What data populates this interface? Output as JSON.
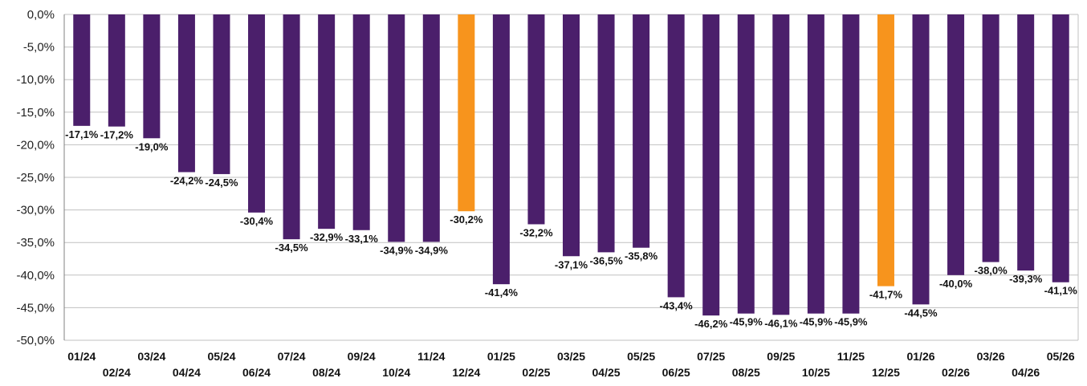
{
  "chart_data": {
    "type": "bar",
    "title": "",
    "xlabel": "",
    "ylabel": "",
    "ylim": [
      -50,
      0
    ],
    "y_ticks": [
      0,
      -5,
      -10,
      -15,
      -20,
      -25,
      -30,
      -35,
      -40,
      -45,
      -50
    ],
    "y_tick_labels": [
      "0,0%",
      "-5,0%",
      "-10,0%",
      "-15,0%",
      "-20,0%",
      "-25,0%",
      "-30,0%",
      "-35,0%",
      "-40,0%",
      "-45,0%",
      "-50,0%"
    ],
    "grid": "horizontal",
    "legend": "none",
    "categories": [
      "01/24",
      "02/24",
      "03/24",
      "04/24",
      "05/24",
      "06/24",
      "07/24",
      "08/24",
      "09/24",
      "10/24",
      "11/24",
      "12/24",
      "01/25",
      "02/25",
      "03/25",
      "04/25",
      "05/25",
      "06/25",
      "07/25",
      "08/25",
      "09/25",
      "10/25",
      "11/25",
      "12/25",
      "01/26",
      "02/26",
      "03/26",
      "04/26",
      "05/26"
    ],
    "values": [
      -17.1,
      -17.2,
      -19.0,
      -24.2,
      -24.5,
      -30.4,
      -34.5,
      -32.9,
      -33.1,
      -34.9,
      -34.9,
      -30.2,
      -41.4,
      -32.2,
      -37.1,
      -36.5,
      -35.8,
      -43.4,
      -46.2,
      -45.9,
      -46.1,
      -45.9,
      -45.9,
      -41.7,
      -44.5,
      -40.0,
      -38.0,
      -39.3,
      -41.1
    ],
    "value_labels": [
      "-17,1%",
      "-17,2%",
      "-19,0%",
      "-24,2%",
      "-24,5%",
      "-30,4%",
      "-34,5%",
      "-32,9%",
      "-33,1%",
      "-34,9%",
      "-34,9%",
      "-30,2%",
      "-41,4%",
      "-32,2%",
      "-37,1%",
      "-36,5%",
      "-35,8%",
      "-43,4%",
      "-46,2%",
      "-45,9%",
      "-46,1%",
      "-45,9%",
      "-45,9%",
      "-41,7%",
      "-44,5%",
      "-40,0%",
      "-38,0%",
      "-39,3%",
      "-41,1%"
    ],
    "highlight_indices": [
      11,
      23
    ],
    "colors": {
      "bar": "#4b1f6b",
      "highlight": "#f7941d",
      "grid": "#c0c0c0",
      "axis": "#808080"
    }
  }
}
